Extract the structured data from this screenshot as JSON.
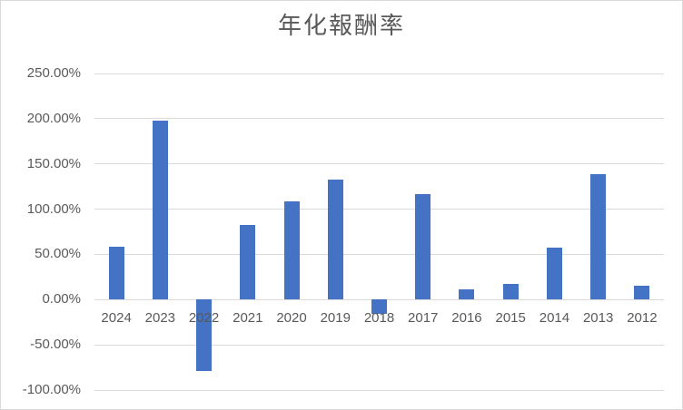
{
  "chart_data": {
    "type": "bar",
    "title": "年化報酬率",
    "categories": [
      "2024",
      "2023",
      "2022",
      "2021",
      "2020",
      "2019",
      "2018",
      "2017",
      "2016",
      "2015",
      "2014",
      "2013",
      "2012"
    ],
    "values": [
      58,
      198,
      -79,
      83,
      109,
      133,
      -16,
      117,
      11,
      17,
      57,
      139,
      15
    ],
    "unit": "%",
    "xlabel": "",
    "ylabel": "",
    "ylim": [
      -100,
      250
    ],
    "y_tick_step": 50,
    "y_ticks": [
      {
        "label": "250.00%",
        "value": 250
      },
      {
        "label": "200.00%",
        "value": 200
      },
      {
        "label": "150.00%",
        "value": 150
      },
      {
        "label": "100.00%",
        "value": 100
      },
      {
        "label": "50.00%",
        "value": 50
      },
      {
        "label": "0.00%",
        "value": 0
      },
      {
        "label": "-50.00%",
        "value": -50
      },
      {
        "label": "-100.00%",
        "value": -100
      }
    ],
    "grid": true,
    "legend": false,
    "colors": {
      "bar": "#4472C4",
      "gridline": "#d9d9d9",
      "axis_text": "#595959",
      "title_text": "#595959",
      "border": "#d9d9d9",
      "background": "#ffffff"
    }
  }
}
